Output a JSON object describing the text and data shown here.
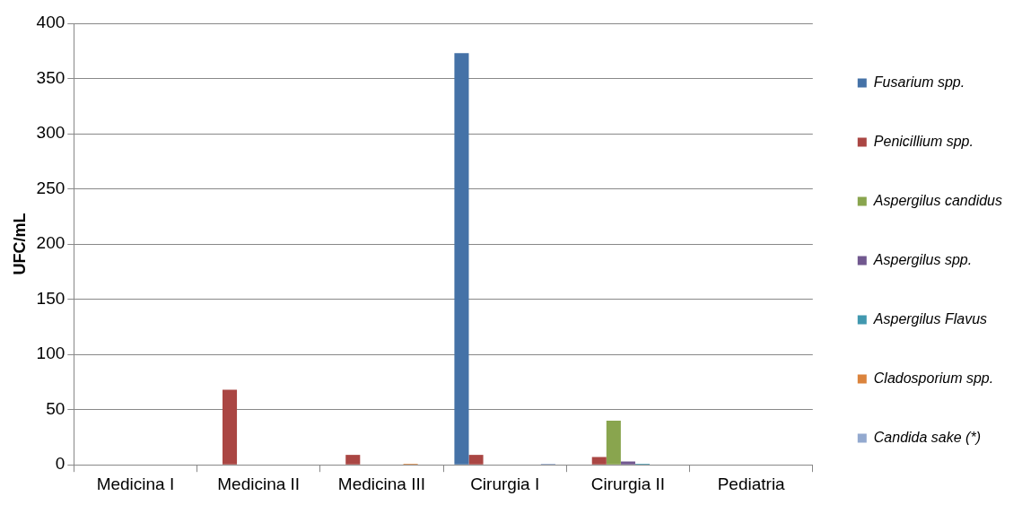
{
  "chart_data": {
    "type": "bar",
    "ylabel": "UFC/mL",
    "categories": [
      "Medicina I",
      "Medicina II",
      "Medicina III",
      "Cirurgia I",
      "Cirurgia II",
      "Pediatria"
    ],
    "series": [
      {
        "name": "Fusarium spp.",
        "color": "#4572a7",
        "values": [
          0,
          0,
          0,
          373,
          0,
          0
        ]
      },
      {
        "name": "Penicillium spp.",
        "color": "#aa4643",
        "values": [
          0,
          68,
          9,
          9,
          7,
          0
        ]
      },
      {
        "name": "Aspergilus candidus",
        "color": "#89a54e",
        "values": [
          0,
          0,
          0,
          0,
          40,
          0
        ]
      },
      {
        "name": "Aspergilus spp.",
        "color": "#71588f",
        "values": [
          0,
          0,
          0,
          0,
          3,
          0
        ]
      },
      {
        "name": "Aspergilus Flavus",
        "color": "#4198af",
        "values": [
          0,
          0,
          0,
          0,
          1,
          0
        ]
      },
      {
        "name": "Cladosporium spp.",
        "color": "#db843d",
        "values": [
          0,
          0,
          1,
          0,
          0,
          0
        ]
      },
      {
        "name": "Candida sake (*)",
        "color": "#93a9cf",
        "values": [
          0,
          0,
          0,
          1,
          0,
          0
        ]
      }
    ],
    "ylim": [
      0,
      400
    ],
    "yticks": [
      0,
      50,
      100,
      150,
      200,
      250,
      300,
      350,
      400
    ],
    "grid": "y",
    "legend": "right"
  }
}
